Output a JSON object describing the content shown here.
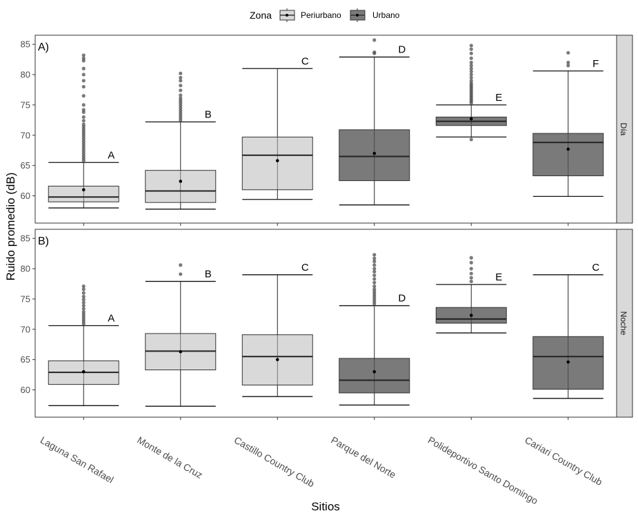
{
  "chart_data": {
    "type": "boxplot",
    "legend": {
      "title": "Zona",
      "position": "top",
      "entries": [
        {
          "label": "Periurbano",
          "color": "#d9d9d9"
        },
        {
          "label": "Urbano",
          "color": "#7a7a7a"
        }
      ]
    },
    "xlabel": "Sitios",
    "ylabel": "Ruido promedio (dB)",
    "ylim": [
      55.5,
      86.5
    ],
    "yticks": [
      60,
      65,
      70,
      75,
      80,
      85
    ],
    "categories": [
      "Laguna San Rafael",
      "Monte de la Cruz",
      "Castillo Country Club",
      "Parque del Norte",
      "Polideportivo Santo Domingo",
      "Cariari Country Club"
    ],
    "zones": [
      "Periurbano",
      "Periurbano",
      "Periurbano",
      "Urbano",
      "Urbano",
      "Urbano"
    ],
    "panels": [
      {
        "label": "A)",
        "strip": "Día",
        "boxes": [
          {
            "min": 58.0,
            "q1": 59.0,
            "median": 59.8,
            "q3": 61.6,
            "max": 65.5,
            "mean": 61.0,
            "letter": "A",
            "outliers": [
              65.8,
              66.2,
              66.6,
              67.0,
              67.4,
              67.8,
              68.2,
              68.6,
              69.0,
              69.4,
              69.8,
              70.2,
              70.6,
              71.0,
              71.4,
              71.8,
              72.4,
              73.0,
              73.8,
              74.2,
              75.0,
              76.5,
              78.0,
              79.0,
              80.0,
              81.0,
              82.3,
              82.7,
              83.2
            ]
          },
          {
            "min": 57.8,
            "q1": 58.9,
            "median": 60.8,
            "q3": 64.2,
            "max": 72.2,
            "mean": 62.4,
            "letter": "B",
            "outliers": [
              72.5,
              72.9,
              73.3,
              73.7,
              74.1,
              74.5,
              74.9,
              75.3,
              75.7,
              76.1,
              76.6,
              77.4,
              78.2,
              79.0,
              79.5,
              80.2
            ]
          },
          {
            "min": 59.4,
            "q1": 61.0,
            "median": 66.7,
            "q3": 69.7,
            "max": 81.0,
            "mean": 65.8,
            "letter": "C",
            "outliers": []
          },
          {
            "min": 58.5,
            "q1": 62.5,
            "median": 66.5,
            "q3": 70.9,
            "max": 82.9,
            "mean": 67.0,
            "letter": "D",
            "outliers": [
              83.5,
              83.7,
              85.7
            ]
          },
          {
            "min": 69.7,
            "q1": 71.6,
            "median": 72.3,
            "q3": 73.0,
            "max": 75.0,
            "mean": 72.7,
            "letter": "E",
            "outliers": [
              69.3,
              75.3,
              75.6,
              75.9,
              76.2,
              76.5,
              76.8,
              77.1,
              77.4,
              77.7,
              78.0,
              78.3,
              78.6,
              79.0,
              79.5,
              80.0,
              80.5,
              81.0,
              81.5,
              82.0,
              82.7,
              83.5,
              84.2,
              84.8
            ]
          },
          {
            "min": 59.9,
            "q1": 63.3,
            "median": 68.8,
            "q3": 70.3,
            "max": 80.6,
            "mean": 67.7,
            "letter": "F",
            "outliers": [
              81.5,
              82.0,
              83.6
            ]
          }
        ]
      },
      {
        "label": "B)",
        "strip": "Noche",
        "boxes": [
          {
            "min": 57.4,
            "q1": 60.9,
            "median": 62.9,
            "q3": 64.8,
            "max": 70.6,
            "mean": 63.0,
            "letter": "A",
            "outliers": [
              70.9,
              71.3,
              71.7,
              72.1,
              72.5,
              72.9,
              73.4,
              73.9,
              74.4,
              74.9,
              75.4,
              76.0,
              76.6,
              77.1
            ]
          },
          {
            "min": 57.3,
            "q1": 63.3,
            "median": 66.4,
            "q3": 69.3,
            "max": 77.9,
            "mean": 66.3,
            "letter": "B",
            "outliers": [
              79.1,
              80.6
            ]
          },
          {
            "min": 58.9,
            "q1": 60.8,
            "median": 65.5,
            "q3": 69.1,
            "max": 79.0,
            "mean": 65.0,
            "letter": "C",
            "outliers": []
          },
          {
            "min": 57.5,
            "q1": 59.5,
            "median": 61.6,
            "q3": 65.2,
            "max": 73.9,
            "mean": 63.0,
            "letter": "D",
            "outliers": [
              74.2,
              74.6,
              75.0,
              75.4,
              75.8,
              76.2,
              76.6,
              77.1,
              77.7,
              78.3,
              78.9,
              79.5,
              80.0,
              80.6,
              81.2,
              81.7,
              82.3
            ]
          },
          {
            "min": 69.4,
            "q1": 71.0,
            "median": 71.7,
            "q3": 73.6,
            "max": 77.4,
            "mean": 72.3,
            "letter": "E",
            "outliers": [
              77.9,
              78.5,
              79.2,
              80.0,
              81.0,
              81.8
            ]
          },
          {
            "min": 58.6,
            "q1": 60.1,
            "median": 65.5,
            "q3": 68.8,
            "max": 79.0,
            "mean": 64.6,
            "letter": "C",
            "outliers": []
          }
        ]
      }
    ],
    "colors": {
      "periurbano": "#d9d9d9",
      "urbano": "#7a7a7a",
      "outlier": "#4d4d4d",
      "mean": "#000000",
      "strip_bg": "#d9d9d9"
    }
  }
}
